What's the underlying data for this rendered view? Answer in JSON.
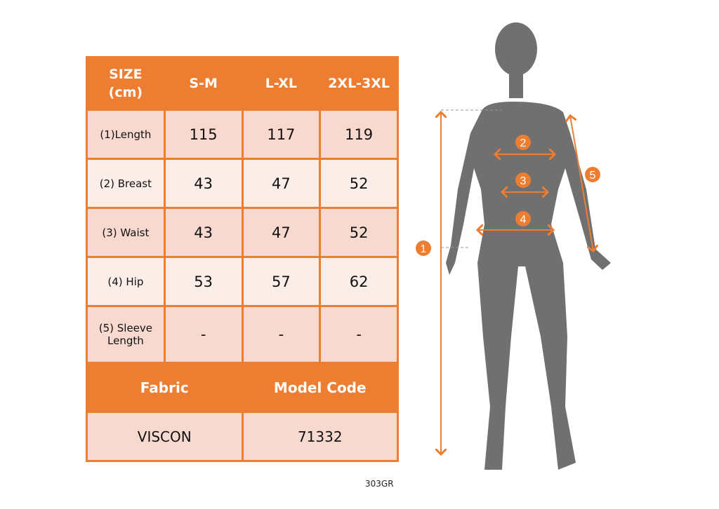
{
  "size_table": {
    "header": [
      "SIZE (cm)",
      "S-M",
      "L-XL",
      "2XL-3XL"
    ],
    "header_lines": [
      "SIZE",
      "(cm)"
    ],
    "rows": [
      {
        "label": "(1)Length",
        "values": [
          "115",
          "117",
          "119"
        ]
      },
      {
        "label": "(2) Breast",
        "values": [
          "43",
          "47",
          "52"
        ]
      },
      {
        "label": "(3) Waist",
        "values": [
          "43",
          "47",
          "52"
        ]
      },
      {
        "label": "(4) Hip",
        "values": [
          "53",
          "57",
          "62"
        ]
      },
      {
        "label": "(5) Sleeve Length",
        "label_lines": [
          "(5) Sleeve",
          "Length"
        ],
        "values": [
          "-",
          "-",
          "-"
        ]
      }
    ]
  },
  "info_table": {
    "headers": [
      "Fabric",
      "Model Code"
    ],
    "values": [
      "VISCON",
      "71332"
    ]
  },
  "product_code": "303GR",
  "figure": {
    "markers": [
      "1",
      "2",
      "3",
      "4",
      "5"
    ]
  },
  "colors": {
    "accent": "#ED7D31",
    "row_dark": "#F8D9CF",
    "row_light": "#FBEDE8",
    "silhouette": "#707070"
  }
}
